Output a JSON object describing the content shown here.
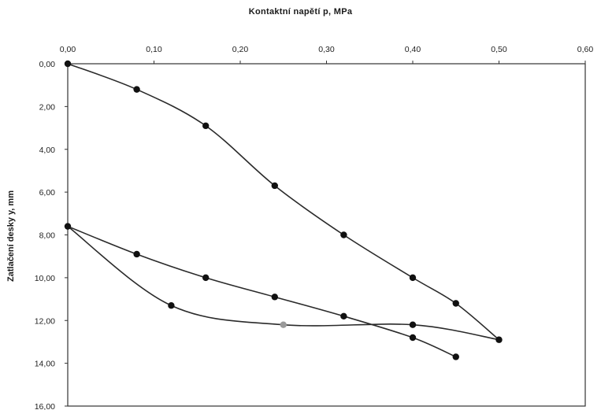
{
  "chart_data": {
    "type": "scatter",
    "title": "Kontaktní napětí p, MPa",
    "xlabel": "Kontaktní napětí p, MPa",
    "ylabel": "Zatlačení desky y, mm",
    "x_axis_position": "top",
    "y_axis_inverted": true,
    "xlim": [
      0.0,
      0.6
    ],
    "ylim": [
      0.0,
      16.0
    ],
    "x_ticks": [
      "0,00",
      "0,10",
      "0,20",
      "0,30",
      "0,40",
      "0,50",
      "0,60"
    ],
    "y_ticks": [
      "0,00",
      "2,00",
      "4,00",
      "6,00",
      "8,00",
      "10,00",
      "12,00",
      "14,00",
      "16,00"
    ],
    "grid": false,
    "legend": "none",
    "series": [
      {
        "points": [
          [
            0.0,
            0.0
          ],
          [
            0.08,
            1.2
          ],
          [
            0.16,
            2.9
          ],
          [
            0.24,
            5.7
          ],
          [
            0.32,
            8.0
          ],
          [
            0.4,
            10.0
          ],
          [
            0.45,
            11.2
          ],
          [
            0.5,
            12.9
          ]
        ]
      },
      {
        "points": [
          [
            0.5,
            12.9
          ],
          [
            0.4,
            12.2
          ],
          [
            0.25,
            12.2
          ],
          [
            0.12,
            11.3
          ],
          [
            0.0,
            7.6
          ]
        ]
      },
      {
        "points": [
          [
            0.0,
            7.6
          ],
          [
            0.08,
            8.9
          ],
          [
            0.16,
            10.0
          ],
          [
            0.24,
            10.9
          ],
          [
            0.32,
            11.8
          ],
          [
            0.4,
            12.8
          ],
          [
            0.45,
            13.7
          ]
        ]
      }
    ],
    "colors": {
      "line": "#2a2a2a",
      "marker": "#111111",
      "marker_light": "#9a9a9a"
    }
  }
}
